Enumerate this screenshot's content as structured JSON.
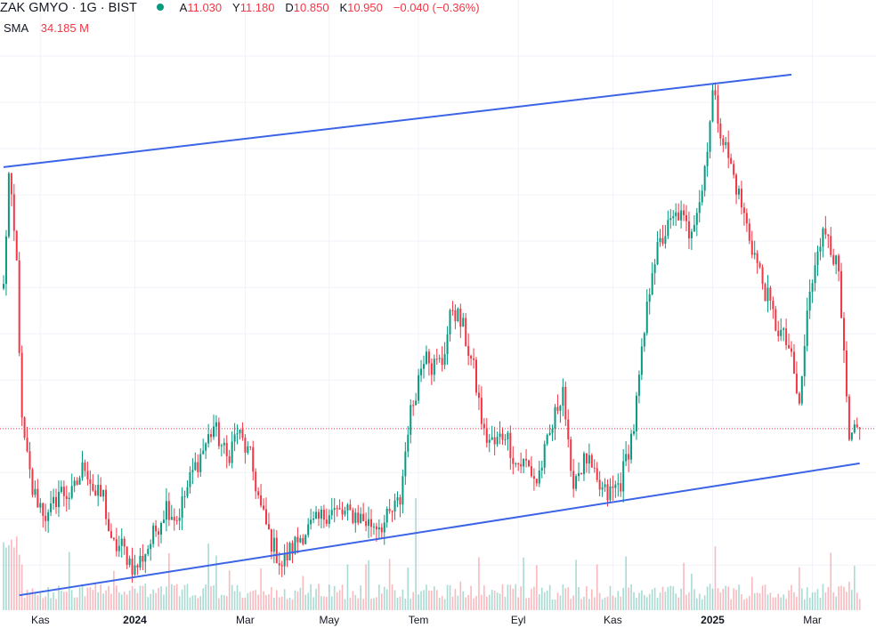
{
  "legend": {
    "symbol": "ZAK GMYO · 1G · BIST",
    "ohlc": [
      {
        "label": "A",
        "value": "11.030"
      },
      {
        "label": "Y",
        "value": "11.180"
      },
      {
        "label": "D",
        "value": "10.850"
      },
      {
        "label": "K",
        "value": "10.950"
      }
    ],
    "change": "−0.040 (−0.36%)",
    "status_color": "#089981"
  },
  "sma": {
    "label": "SMA",
    "value": "34.185 M"
  },
  "colors": {
    "up": "#089981",
    "down": "#f23645",
    "trendline": "#3c64e6",
    "grid": "#f0f3fa",
    "price_line": "#f23645"
  },
  "chart_data": {
    "type": "candlestick",
    "x_tick_labels": [
      {
        "label": "Kas",
        "bold": false
      },
      {
        "label": "2024",
        "bold": true
      },
      {
        "label": "Mar",
        "bold": false
      },
      {
        "label": "May",
        "bold": false
      },
      {
        "label": "Tem",
        "bold": false
      },
      {
        "label": "Eyl",
        "bold": false
      },
      {
        "label": "Kas",
        "bold": false
      },
      {
        "label": "2025",
        "bold": true
      },
      {
        "label": "Mar",
        "bold": false
      }
    ],
    "x_ticks_index": [
      14,
      50,
      92,
      124,
      158,
      196,
      232,
      270,
      308
    ],
    "ylim": [
      7.2,
      19.0
    ],
    "last_close": 10.95,
    "trendlines": [
      {
        "name": "upper",
        "points": [
          [
            0,
            16.6
          ],
          [
            300,
            18.6
          ]
        ]
      },
      {
        "name": "lower",
        "points": [
          [
            6,
            7.35
          ],
          [
            326,
            10.2
          ]
        ]
      }
    ],
    "anchors": [
      [
        0,
        14.0
      ],
      [
        2,
        16.4
      ],
      [
        5,
        14.5
      ],
      [
        7,
        11.0
      ],
      [
        11,
        9.6
      ],
      [
        13,
        9.4
      ],
      [
        17,
        9.0
      ],
      [
        21,
        9.6
      ],
      [
        26,
        9.5
      ],
      [
        31,
        10.2
      ],
      [
        35,
        9.5
      ],
      [
        38,
        9.5
      ],
      [
        41,
        8.4
      ],
      [
        45,
        8.4
      ],
      [
        50,
        7.9
      ],
      [
        56,
        8.5
      ],
      [
        62,
        9.3
      ],
      [
        66,
        9.0
      ],
      [
        72,
        10.0
      ],
      [
        76,
        10.5
      ],
      [
        80,
        11.0
      ],
      [
        85,
        10.3
      ],
      [
        89,
        10.9
      ],
      [
        94,
        10.3
      ],
      [
        98,
        9.2
      ],
      [
        102,
        8.5
      ],
      [
        106,
        8.0
      ],
      [
        109,
        8.3
      ],
      [
        114,
        8.7
      ],
      [
        119,
        8.9
      ],
      [
        124,
        9.2
      ],
      [
        129,
        9.1
      ],
      [
        134,
        9.1
      ],
      [
        139,
        8.9
      ],
      [
        145,
        8.9
      ],
      [
        151,
        9.4
      ],
      [
        154,
        11.0
      ],
      [
        157,
        11.8
      ],
      [
        161,
        12.8
      ],
      [
        163,
        12.3
      ],
      [
        167,
        12.4
      ],
      [
        171,
        13.6
      ],
      [
        175,
        13.1
      ],
      [
        179,
        12.2
      ],
      [
        183,
        10.8
      ],
      [
        187,
        10.6
      ],
      [
        191,
        10.9
      ],
      [
        195,
        10.2
      ],
      [
        199,
        10.2
      ],
      [
        203,
        9.8
      ],
      [
        206,
        10.4
      ],
      [
        209,
        11.0
      ],
      [
        213,
        11.9
      ],
      [
        216,
        9.8
      ],
      [
        222,
        10.3
      ],
      [
        226,
        9.7
      ],
      [
        230,
        9.5
      ],
      [
        235,
        9.8
      ],
      [
        240,
        11.0
      ],
      [
        243,
        12.5
      ],
      [
        247,
        14.5
      ],
      [
        252,
        15.2
      ],
      [
        257,
        15.6
      ],
      [
        261,
        15.2
      ],
      [
        266,
        16.1
      ],
      [
        270,
        18.2
      ],
      [
        274,
        17.2
      ],
      [
        279,
        16.2
      ],
      [
        284,
        15.1
      ],
      [
        288,
        14.3
      ],
      [
        294,
        13.2
      ],
      [
        299,
        12.7
      ],
      [
        303,
        11.4
      ],
      [
        306,
        13.4
      ],
      [
        310,
        15.0
      ],
      [
        314,
        15.2
      ],
      [
        318,
        14.2
      ],
      [
        322,
        10.6
      ],
      [
        326,
        11.0
      ]
    ]
  }
}
